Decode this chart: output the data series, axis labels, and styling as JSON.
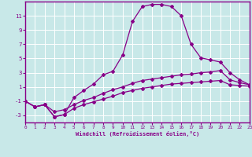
{
  "bg_color": "#c8e8e8",
  "line_color": "#880088",
  "grid_color": "#aacccc",
  "xlabel": "Windchill (Refroidissement éolien,°C)",
  "xlim": [
    0,
    23
  ],
  "ylim": [
    -4,
    13
  ],
  "xticks": [
    0,
    1,
    2,
    3,
    4,
    5,
    6,
    7,
    8,
    9,
    10,
    11,
    12,
    13,
    14,
    15,
    16,
    17,
    18,
    19,
    20,
    21,
    22,
    23
  ],
  "yticks": [
    -3,
    -1,
    1,
    3,
    5,
    7,
    9,
    11
  ],
  "curve_main_x": [
    0,
    1,
    2,
    3,
    4,
    5,
    6,
    7,
    8,
    9,
    10,
    11,
    12,
    13,
    14,
    15,
    16,
    17,
    18,
    19,
    20,
    21,
    22,
    23
  ],
  "curve_main_y": [
    -1.0,
    -1.8,
    -1.5,
    -3.2,
    -2.9,
    -0.5,
    0.5,
    1.4,
    2.7,
    3.2,
    5.5,
    10.2,
    12.3,
    12.6,
    12.6,
    12.3,
    11.0,
    7.0,
    5.1,
    4.8,
    4.5,
    3.0,
    2.0,
    1.3
  ],
  "curve_mid_x": [
    0,
    1,
    2,
    3,
    4,
    5,
    6,
    7,
    8,
    9,
    10,
    11,
    12,
    13,
    14,
    15,
    16,
    17,
    18,
    19,
    20,
    21,
    22,
    23
  ],
  "curve_mid_y": [
    -1.0,
    -1.8,
    -1.5,
    -2.5,
    -2.2,
    -1.5,
    -0.9,
    -0.5,
    0.1,
    0.6,
    1.0,
    1.5,
    1.9,
    2.1,
    2.3,
    2.5,
    2.7,
    2.8,
    3.0,
    3.1,
    3.3,
    2.0,
    1.6,
    1.3
  ],
  "curve_low_x": [
    0,
    1,
    2,
    3,
    4,
    5,
    6,
    7,
    8,
    9,
    10,
    11,
    12,
    13,
    14,
    15,
    16,
    17,
    18,
    19,
    20,
    21,
    22,
    23
  ],
  "curve_low_y": [
    -1.0,
    -1.8,
    -1.5,
    -3.2,
    -2.9,
    -2.0,
    -1.5,
    -1.1,
    -0.7,
    -0.3,
    0.2,
    0.5,
    0.8,
    1.0,
    1.2,
    1.4,
    1.5,
    1.6,
    1.7,
    1.8,
    1.9,
    1.3,
    1.2,
    1.1
  ]
}
